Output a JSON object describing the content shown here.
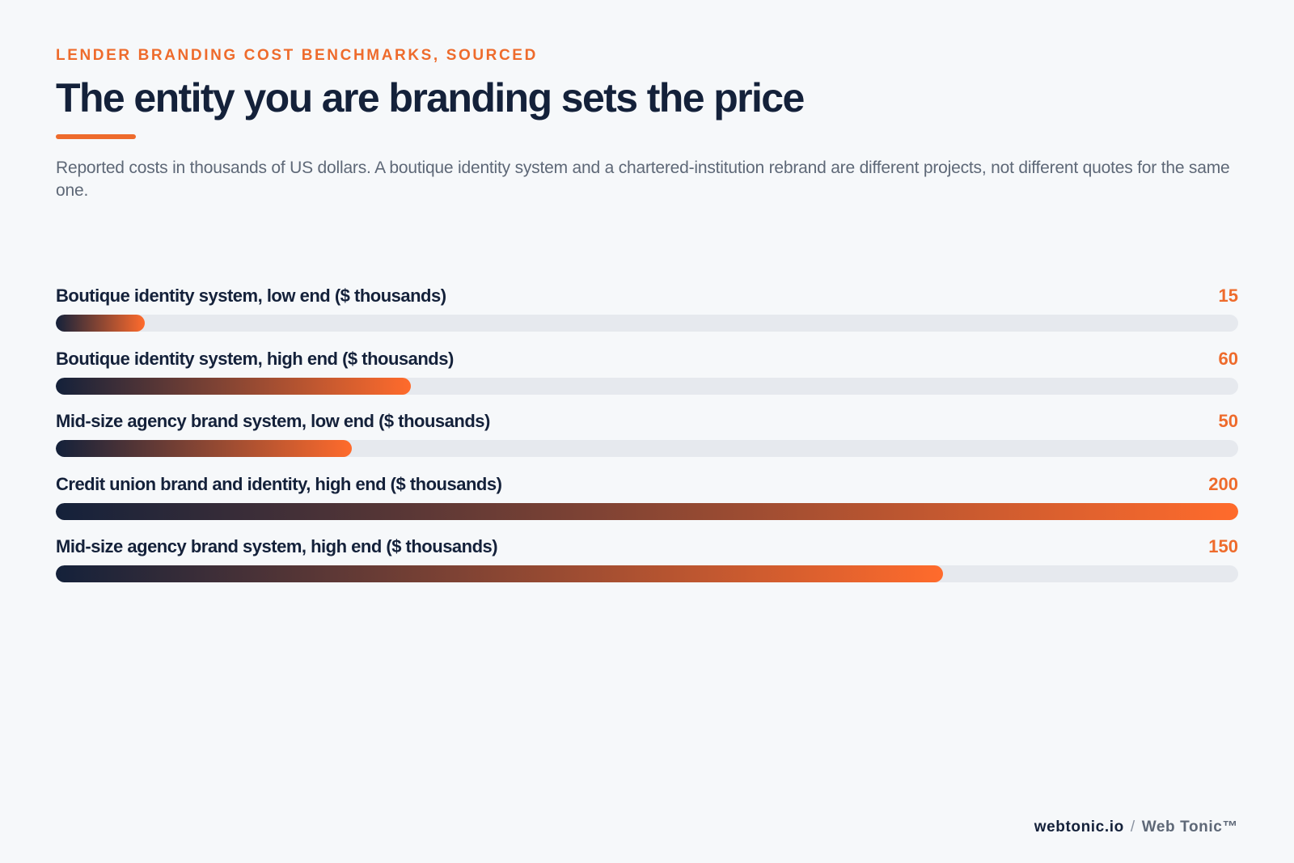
{
  "header": {
    "eyebrow": "LENDER BRANDING COST BENCHMARKS, SOURCED",
    "title": "The entity you are branding sets the price",
    "subtitle": "Reported costs in thousands of US dollars. A boutique identity system and a chartered-institution rebrand are different projects, not different quotes for the same one."
  },
  "colors": {
    "accent": "#ee6b2c",
    "navy": "#14213a",
    "track": "#e6e9ee",
    "background": "#f6f8fa"
  },
  "chart_data": {
    "type": "bar",
    "orientation": "horizontal",
    "categories": [
      "Boutique identity system, low end ($ thousands)",
      "Boutique identity system, high end ($ thousands)",
      "Mid-size agency brand system, low end ($ thousands)",
      "Credit union brand and identity, high end ($ thousands)",
      "Mid-size agency brand system, high end ($ thousands)"
    ],
    "values": [
      15,
      60,
      50,
      200,
      150
    ],
    "value_labels": [
      "15",
      "60",
      "50",
      "200",
      "150"
    ],
    "xlim": [
      0,
      200
    ],
    "grid": false,
    "legend": "none"
  },
  "footer": {
    "site": "webtonic.io",
    "separator": "/",
    "brand": "Web Tonic™"
  }
}
